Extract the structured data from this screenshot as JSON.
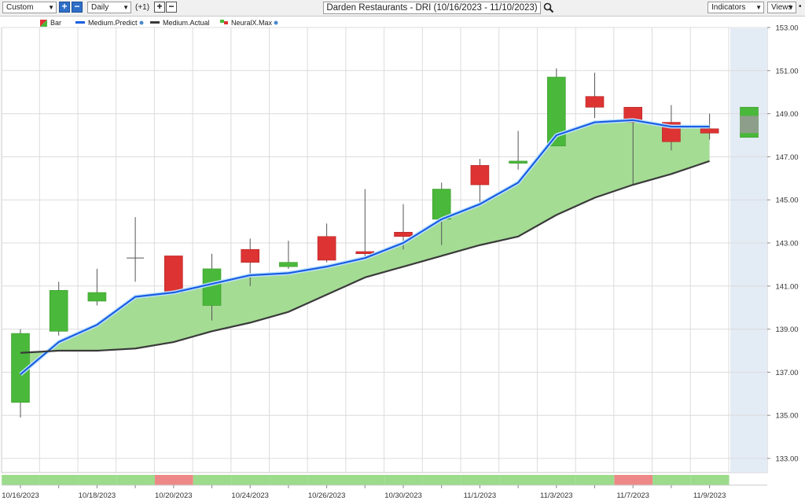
{
  "toolbar": {
    "range_select": "Custom",
    "interval_select": "Daily",
    "interval_offset": "(+1)",
    "chart_title": "Darden Restaurants - DRI (10/16/2023 - 11/10/2023)",
    "indicators_label": "Indicators",
    "views_label": "Views"
  },
  "legend": [
    {
      "label": "Bar",
      "icon": "bar-icon"
    },
    {
      "label": "Medium.Predict",
      "color": "#1a5ee0"
    },
    {
      "label": "Medium.Actual",
      "color": "#3a3a3a"
    },
    {
      "label": "NeuralX.Max",
      "icon": "neuralx-icon"
    }
  ],
  "colors": {
    "up_candle": "#4ab83a",
    "down_candle": "#dd3333",
    "band_fill": "#a4dc94",
    "predict_line": "#1a5ee0",
    "actual_line": "#3a3a3a",
    "signal_green": "#9bdb8b",
    "signal_red": "#ee8888",
    "forecast_shade": "#e3ebf5"
  },
  "chart_data": {
    "type": "candlestick",
    "x_tick_labels": [
      "10/16/2023",
      "10/18/2023",
      "10/20/2023",
      "10/24/2023",
      "10/26/2023",
      "10/30/2023",
      "11/1/2023",
      "11/3/2023",
      "11/7/2023",
      "11/9/2023"
    ],
    "y_tick_labels": [
      "153.00",
      "151.00",
      "149.00",
      "147.00",
      "145.00",
      "143.00",
      "141.00",
      "139.00",
      "137.00",
      "135.00",
      "133.00"
    ],
    "ylim": [
      133,
      153
    ],
    "candles": [
      {
        "date": "10/16/2023",
        "open": 135.6,
        "high": 139.0,
        "low": 134.9,
        "close": 138.8
      },
      {
        "date": "10/17/2023",
        "open": 138.9,
        "high": 141.2,
        "low": 138.7,
        "close": 140.8
      },
      {
        "date": "10/18/2023",
        "open": 140.3,
        "high": 141.8,
        "low": 140.1,
        "close": 140.7
      },
      {
        "date": "10/19/2023",
        "open": 142.3,
        "high": 144.2,
        "low": 141.2,
        "close": 142.3
      },
      {
        "date": "10/20/2023",
        "open": 142.4,
        "high": 142.4,
        "low": 140.7,
        "close": 140.7
      },
      {
        "date": "10/23/2023",
        "open": 140.1,
        "high": 142.5,
        "low": 139.4,
        "close": 141.8
      },
      {
        "date": "10/24/2023",
        "open": 142.7,
        "high": 143.2,
        "low": 141.0,
        "close": 142.1
      },
      {
        "date": "10/25/2023",
        "open": 141.9,
        "high": 143.1,
        "low": 141.8,
        "close": 142.1
      },
      {
        "date": "10/26/2023",
        "open": 143.3,
        "high": 143.9,
        "low": 142.1,
        "close": 142.2
      },
      {
        "date": "10/27/2023",
        "open": 142.6,
        "high": 145.5,
        "low": 142.3,
        "close": 142.5
      },
      {
        "date": "10/30/2023",
        "open": 143.5,
        "high": 144.8,
        "low": 142.7,
        "close": 143.3
      },
      {
        "date": "10/31/2023",
        "open": 144.1,
        "high": 145.8,
        "low": 142.9,
        "close": 145.5
      },
      {
        "date": "11/1/2023",
        "open": 146.6,
        "high": 146.9,
        "low": 144.7,
        "close": 145.7
      },
      {
        "date": "11/2/2023",
        "open": 146.7,
        "high": 148.2,
        "low": 146.4,
        "close": 146.8
      },
      {
        "date": "11/3/2023",
        "open": 147.5,
        "high": 151.1,
        "low": 147.5,
        "close": 150.7
      },
      {
        "date": "11/6/2023",
        "open": 149.8,
        "high": 150.9,
        "low": 148.8,
        "close": 149.3
      },
      {
        "date": "11/7/2023",
        "open": 149.3,
        "high": 149.3,
        "low": 145.7,
        "close": 148.6
      },
      {
        "date": "11/8/2023",
        "open": 148.6,
        "high": 149.4,
        "low": 147.3,
        "close": 147.7
      },
      {
        "date": "11/9/2023",
        "open": 148.3,
        "high": 149.0,
        "low": 147.8,
        "close": 148.1
      }
    ],
    "forecast_bar": {
      "low": 147.9,
      "high": 149.3,
      "mid_low": 148.1,
      "mid_high": 148.9
    },
    "series": [
      {
        "name": "Medium.Predict",
        "values": [
          136.9,
          138.4,
          139.2,
          140.5,
          140.7,
          141.1,
          141.5,
          141.6,
          141.9,
          142.3,
          143.0,
          144.1,
          144.8,
          145.8,
          148.0,
          148.6,
          148.7,
          148.4,
          148.4
        ]
      },
      {
        "name": "Medium.Actual",
        "values": [
          137.9,
          138.0,
          138.0,
          138.1,
          138.4,
          138.9,
          139.3,
          139.8,
          140.6,
          141.4,
          141.9,
          142.4,
          142.9,
          143.3,
          144.3,
          145.1,
          145.7,
          146.2,
          146.8
        ]
      }
    ],
    "signal_strip": [
      "green",
      "green",
      "green",
      "green",
      "red",
      "green",
      "green",
      "green",
      "green",
      "green",
      "green",
      "green",
      "green",
      "green",
      "green",
      "green",
      "red",
      "green",
      "green"
    ]
  }
}
